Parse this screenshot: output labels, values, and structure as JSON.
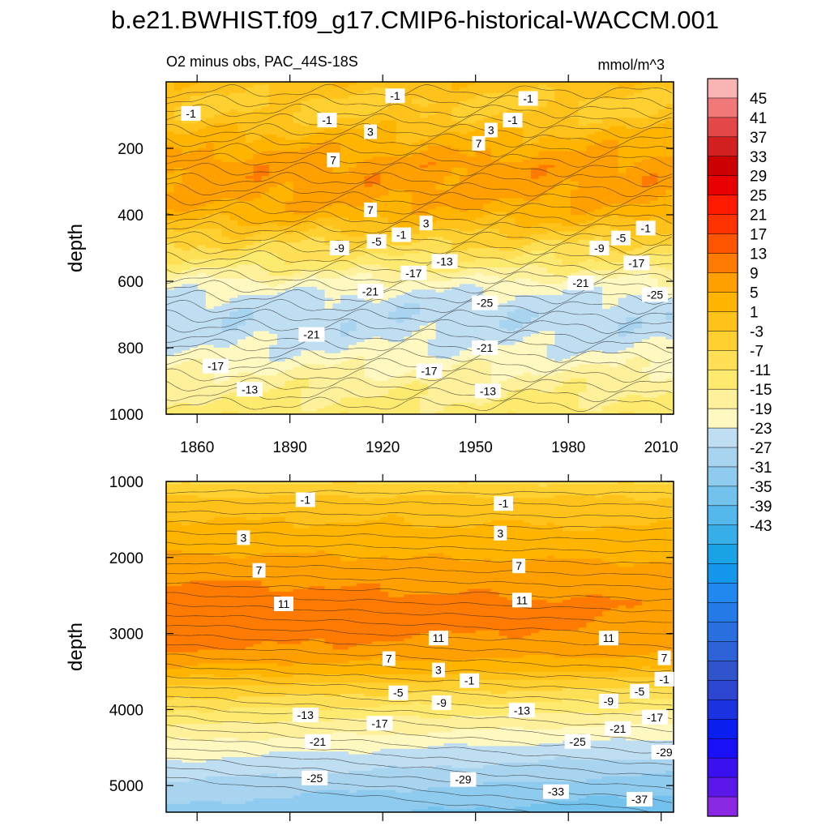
{
  "title": "b.e21.BWHIST.f09_g17.CMIP6-historical-WACCM.001",
  "subtitle": "O2 minus obs, PAC_44S-18S",
  "units": "mmol/m^3",
  "colorbar": {
    "labels": [
      "45",
      "41",
      "37",
      "33",
      "29",
      "25",
      "21",
      "17",
      "13",
      "9",
      "5",
      "1",
      "-3",
      "-7",
      "-11",
      "-15",
      "-19",
      "-23",
      "-27",
      "-31",
      "-35",
      "-39",
      "-43"
    ],
    "colors": [
      "#fbb4b4",
      "#f07878",
      "#e44848",
      "#d42020",
      "#cc0000",
      "#e60000",
      "#ff1a00",
      "#ff3300",
      "#ff5500",
      "#ff7a00",
      "#ffa000",
      "#ffb400",
      "#ffc21a",
      "#ffd030",
      "#ffdf55",
      "#ffea70",
      "#fff09c",
      "#fff8c0",
      "#c0def2",
      "#a8d4f0",
      "#8ecbee",
      "#72c2ed",
      "#55b8ec",
      "#38aee8",
      "#1aa2e6",
      "#1496eb",
      "#2088ef",
      "#247be8",
      "#2a6fe0",
      "#2e62d8",
      "#2f54cc",
      "#2c46d2",
      "#1a32e0",
      "#0a1ef0",
      "#1a10f8",
      "#3a10ee",
      "#5a18e8",
      "#8a28e4"
    ]
  },
  "chart_data": [
    {
      "type": "heatmap",
      "subtype": "contour",
      "panel": "upper",
      "title": "b.e21.BWHIST.f09_g17.CMIP6-historical-WACCM.001",
      "subtitle": "O2 minus obs, PAC_44S-18S",
      "units": "mmol/m^3",
      "ylabel": "depth",
      "xlabel": "",
      "xlim": [
        1850,
        2014
      ],
      "ylim": [
        1000,
        0
      ],
      "xticks": [
        1860,
        1890,
        1920,
        1950,
        1980,
        2010
      ],
      "yticks": [
        200,
        400,
        600,
        800,
        1000
      ],
      "depth_profile": {
        "depth": [
          0,
          60,
          100,
          150,
          200,
          250,
          300,
          350,
          400,
          430,
          460,
          500,
          550,
          600,
          650,
          700,
          750,
          800,
          850,
          900,
          950,
          1000
        ],
        "value": [
          2,
          -2,
          -1,
          3,
          6,
          9,
          9,
          8,
          5,
          2,
          -2,
          -6,
          -11,
          -18,
          -22,
          -24,
          -23,
          -21,
          -18,
          -15,
          -13,
          -11
        ]
      },
      "contour_labels": [
        {
          "text": "-1",
          "x": 1858,
          "depth": 95
        },
        {
          "text": "-1",
          "x": 1924,
          "depth": 42
        },
        {
          "text": "-1",
          "x": 1967,
          "depth": 50
        },
        {
          "text": "-1",
          "x": 1902,
          "depth": 115
        },
        {
          "text": "-1",
          "x": 1962,
          "depth": 115
        },
        {
          "text": "3",
          "x": 1916,
          "depth": 150
        },
        {
          "text": "3",
          "x": 1955,
          "depth": 145
        },
        {
          "text": "7",
          "x": 1951,
          "depth": 185
        },
        {
          "text": "7",
          "x": 1904,
          "depth": 235
        },
        {
          "text": "7",
          "x": 1916,
          "depth": 385
        },
        {
          "text": "3",
          "x": 1934,
          "depth": 425
        },
        {
          "text": "-1",
          "x": 1926,
          "depth": 460
        },
        {
          "text": "-5",
          "x": 1918,
          "depth": 480
        },
        {
          "text": "-9",
          "x": 1906,
          "depth": 500
        },
        {
          "text": "-13",
          "x": 1940,
          "depth": 540
        },
        {
          "text": "-17",
          "x": 1930,
          "depth": 575
        },
        {
          "text": "-21",
          "x": 1916,
          "depth": 630
        },
        {
          "text": "-25",
          "x": 1953,
          "depth": 665
        },
        {
          "text": "-21",
          "x": 1897,
          "depth": 760
        },
        {
          "text": "-21",
          "x": 1953,
          "depth": 800
        },
        {
          "text": "-17",
          "x": 1866,
          "depth": 855
        },
        {
          "text": "-17",
          "x": 1935,
          "depth": 870
        },
        {
          "text": "-13",
          "x": 1877,
          "depth": 925
        },
        {
          "text": "-13",
          "x": 1954,
          "depth": 930
        },
        {
          "text": "-9",
          "x": 1990,
          "depth": 500
        },
        {
          "text": "-5",
          "x": 1997,
          "depth": 470
        },
        {
          "text": "-1",
          "x": 2005,
          "depth": 440
        },
        {
          "text": "-17",
          "x": 2002,
          "depth": 545
        },
        {
          "text": "-21",
          "x": 1984,
          "depth": 605
        },
        {
          "text": "-25",
          "x": 2008,
          "depth": 640
        }
      ]
    },
    {
      "type": "heatmap",
      "subtype": "contour",
      "panel": "lower",
      "ylabel": "depth",
      "xlabel": "",
      "xlim": [
        1850,
        2014
      ],
      "ylim": [
        5350,
        1000
      ],
      "yticks": [
        1000,
        2000,
        3000,
        4000,
        5000
      ],
      "depth_profile": {
        "depth": [
          1000,
          1100,
          1200,
          1400,
          1700,
          2000,
          2300,
          2600,
          2900,
          3200,
          3500,
          3600,
          3700,
          3900,
          4100,
          4300,
          4500,
          4700,
          4900,
          5100,
          5350
        ],
        "value": [
          -6,
          -3,
          -1,
          2,
          4,
          7,
          10,
          12,
          12,
          10,
          4,
          0,
          -3,
          -8,
          -13,
          -17,
          -21,
          -24,
          -27,
          -30,
          -33
        ]
      },
      "contour_labels": [
        {
          "text": "-1",
          "x": 1895,
          "depth": 1240
        },
        {
          "text": "-1",
          "x": 1959,
          "depth": 1290
        },
        {
          "text": "3",
          "x": 1875,
          "depth": 1740
        },
        {
          "text": "3",
          "x": 1958,
          "depth": 1680
        },
        {
          "text": "7",
          "x": 1880,
          "depth": 2170
        },
        {
          "text": "7",
          "x": 1964,
          "depth": 2110
        },
        {
          "text": "11",
          "x": 1888,
          "depth": 2610
        },
        {
          "text": "11",
          "x": 1965,
          "depth": 2560
        },
        {
          "text": "11",
          "x": 1938,
          "depth": 3060
        },
        {
          "text": "11",
          "x": 1993,
          "depth": 3060
        },
        {
          "text": "7",
          "x": 1922,
          "depth": 3330
        },
        {
          "text": "3",
          "x": 1938,
          "depth": 3480
        },
        {
          "text": "-1",
          "x": 1948,
          "depth": 3620
        },
        {
          "text": "-5",
          "x": 1925,
          "depth": 3780
        },
        {
          "text": "-9",
          "x": 1939,
          "depth": 3910
        },
        {
          "text": "-13",
          "x": 1895,
          "depth": 4070
        },
        {
          "text": "-17",
          "x": 1919,
          "depth": 4180
        },
        {
          "text": "-21",
          "x": 1899,
          "depth": 4420
        },
        {
          "text": "-25",
          "x": 1898,
          "depth": 4900
        },
        {
          "text": "-29",
          "x": 1946,
          "depth": 4920
        },
        {
          "text": "-33",
          "x": 1976,
          "depth": 5080
        },
        {
          "text": "-37",
          "x": 2003,
          "depth": 5180
        },
        {
          "text": "7",
          "x": 2011,
          "depth": 3320
        },
        {
          "text": "-1",
          "x": 2011,
          "depth": 3600
        },
        {
          "text": "-5",
          "x": 2003,
          "depth": 3760
        },
        {
          "text": "-9",
          "x": 1993,
          "depth": 3890
        },
        {
          "text": "-13",
          "x": 1965,
          "depth": 4010
        },
        {
          "text": "-17",
          "x": 2008,
          "depth": 4100
        },
        {
          "text": "-21",
          "x": 1996,
          "depth": 4250
        },
        {
          "text": "-25",
          "x": 1983,
          "depth": 4420
        },
        {
          "text": "-29",
          "x": 2011,
          "depth": 4560
        }
      ]
    }
  ]
}
